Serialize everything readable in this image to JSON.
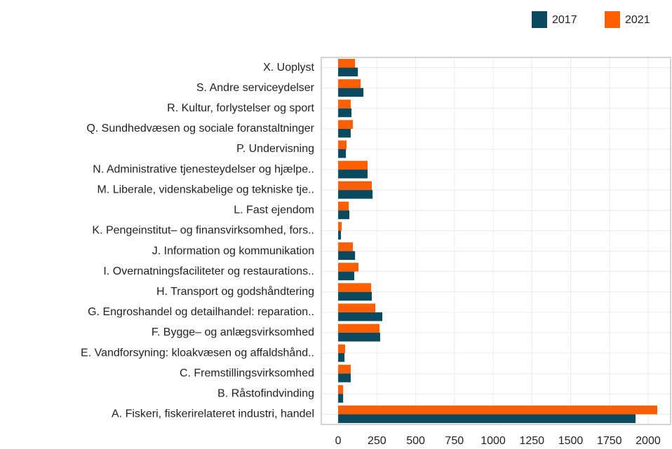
{
  "chart_data": {
    "type": "bar",
    "orientation": "horizontal",
    "categories": [
      "X. Uoplyst",
      "S. Andre serviceydelser",
      "R. Kultur, forlystelser og sport",
      "Q. Sundhedvæsen og sociale foranstaltninger",
      "P. Undervisning",
      "N. Administrative tjenesteydelser og hjælpe..",
      "M. Liberale, videnskabelige og tekniske tje..",
      "L. Fast ejendom",
      "K. Pengeinstitut– og finansvirksomhed, fors..",
      "J. Information og kommunikation",
      "I. Overnatningsfaciliteter og restaurations..",
      "H. Transport og godshåndtering",
      "G. Engroshandel og detailhandel: reparation..",
      "F. Bygge– og anlægsvirksomhed",
      "E. Vandforsyning: kloakvæsen og affaldshånd..",
      "C. Fremstillingsvirksomhed",
      "B. Råstofindvinding",
      "A. Fiskeri, fiskerirelateret industri, handel"
    ],
    "series": [
      {
        "name": "2017",
        "color": "#0b4a5e",
        "values": [
          127,
          163,
          86,
          81,
          50,
          190,
          222,
          72,
          18,
          109,
          104,
          217,
          285,
          271,
          41,
          81,
          32,
          1919
        ]
      },
      {
        "name": "2021",
        "color": "#ff5f00",
        "values": [
          109,
          145,
          81,
          95,
          54,
          190,
          217,
          68,
          23,
          95,
          131,
          213,
          240,
          267,
          45,
          81,
          32,
          2059
        ]
      }
    ],
    "xlim": [
      -109,
      2145
    ],
    "xticks": [
      0,
      250,
      500,
      750,
      1000,
      1250,
      1500,
      1750,
      2000
    ],
    "grid": true,
    "legend": "top-right"
  }
}
